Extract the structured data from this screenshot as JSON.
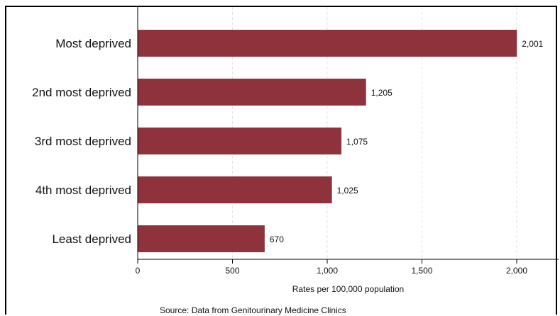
{
  "chart_data": {
    "type": "bar",
    "orientation": "horizontal",
    "categories": [
      "Most deprived",
      "2nd most deprived",
      "3rd most deprived",
      "4th most deprived",
      "Least deprived"
    ],
    "values": [
      2001,
      1205,
      1075,
      1025,
      670
    ],
    "value_labels": [
      "2,001",
      "1,205",
      "1,075",
      "1,025",
      "670"
    ],
    "xlabel": "Rates per 100,000 population",
    "xlim": [
      0,
      2250
    ],
    "xticks": [
      0,
      500,
      1000,
      1500,
      2000
    ],
    "xtick_labels": [
      "0",
      "500",
      "1,000",
      "1,500",
      "2,000"
    ],
    "grid": "vertical dashed",
    "bar_color": "#8e333c",
    "source": "Source: Data from Genitourinary Medicine Clinics"
  }
}
